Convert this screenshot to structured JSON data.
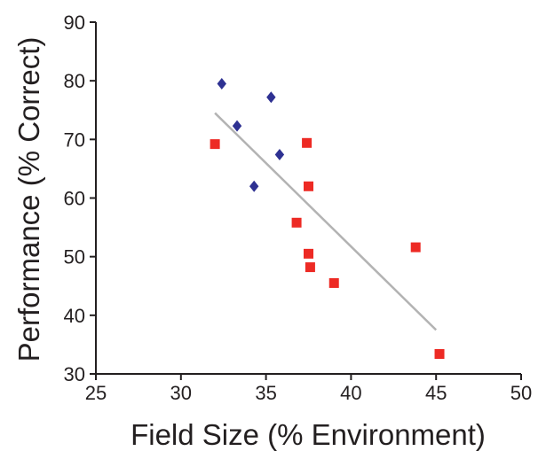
{
  "chart_data": {
    "type": "scatter",
    "title": "",
    "xlabel": "Field Size (% Environment)",
    "ylabel": "Performance (% Correct)",
    "xlim": [
      25,
      50
    ],
    "ylim": [
      30,
      90
    ],
    "xticks": [
      25,
      30,
      35,
      40,
      45,
      50
    ],
    "yticks": [
      30,
      40,
      50,
      60,
      70,
      80,
      90
    ],
    "grid": false,
    "legend": "none",
    "series": [
      {
        "marker": "diamond",
        "color": "#2e3192",
        "points": [
          {
            "x": 32.4,
            "y": 79.5
          },
          {
            "x": 33.3,
            "y": 72.3
          },
          {
            "x": 35.3,
            "y": 77.2
          },
          {
            "x": 35.8,
            "y": 67.4
          },
          {
            "x": 34.3,
            "y": 62.0
          }
        ]
      },
      {
        "marker": "square",
        "color": "#ed2a24",
        "points": [
          {
            "x": 32.0,
            "y": 69.2
          },
          {
            "x": 37.4,
            "y": 69.4
          },
          {
            "x": 37.5,
            "y": 62.0
          },
          {
            "x": 36.8,
            "y": 55.8
          },
          {
            "x": 37.5,
            "y": 50.5
          },
          {
            "x": 37.6,
            "y": 48.2
          },
          {
            "x": 39.0,
            "y": 45.5
          },
          {
            "x": 43.8,
            "y": 51.6
          },
          {
            "x": 45.2,
            "y": 33.4
          }
        ]
      }
    ],
    "trendline": {
      "color": "#b3b3b3",
      "x": [
        32.0,
        45.0
      ],
      "y": [
        74.5,
        37.5
      ]
    }
  }
}
